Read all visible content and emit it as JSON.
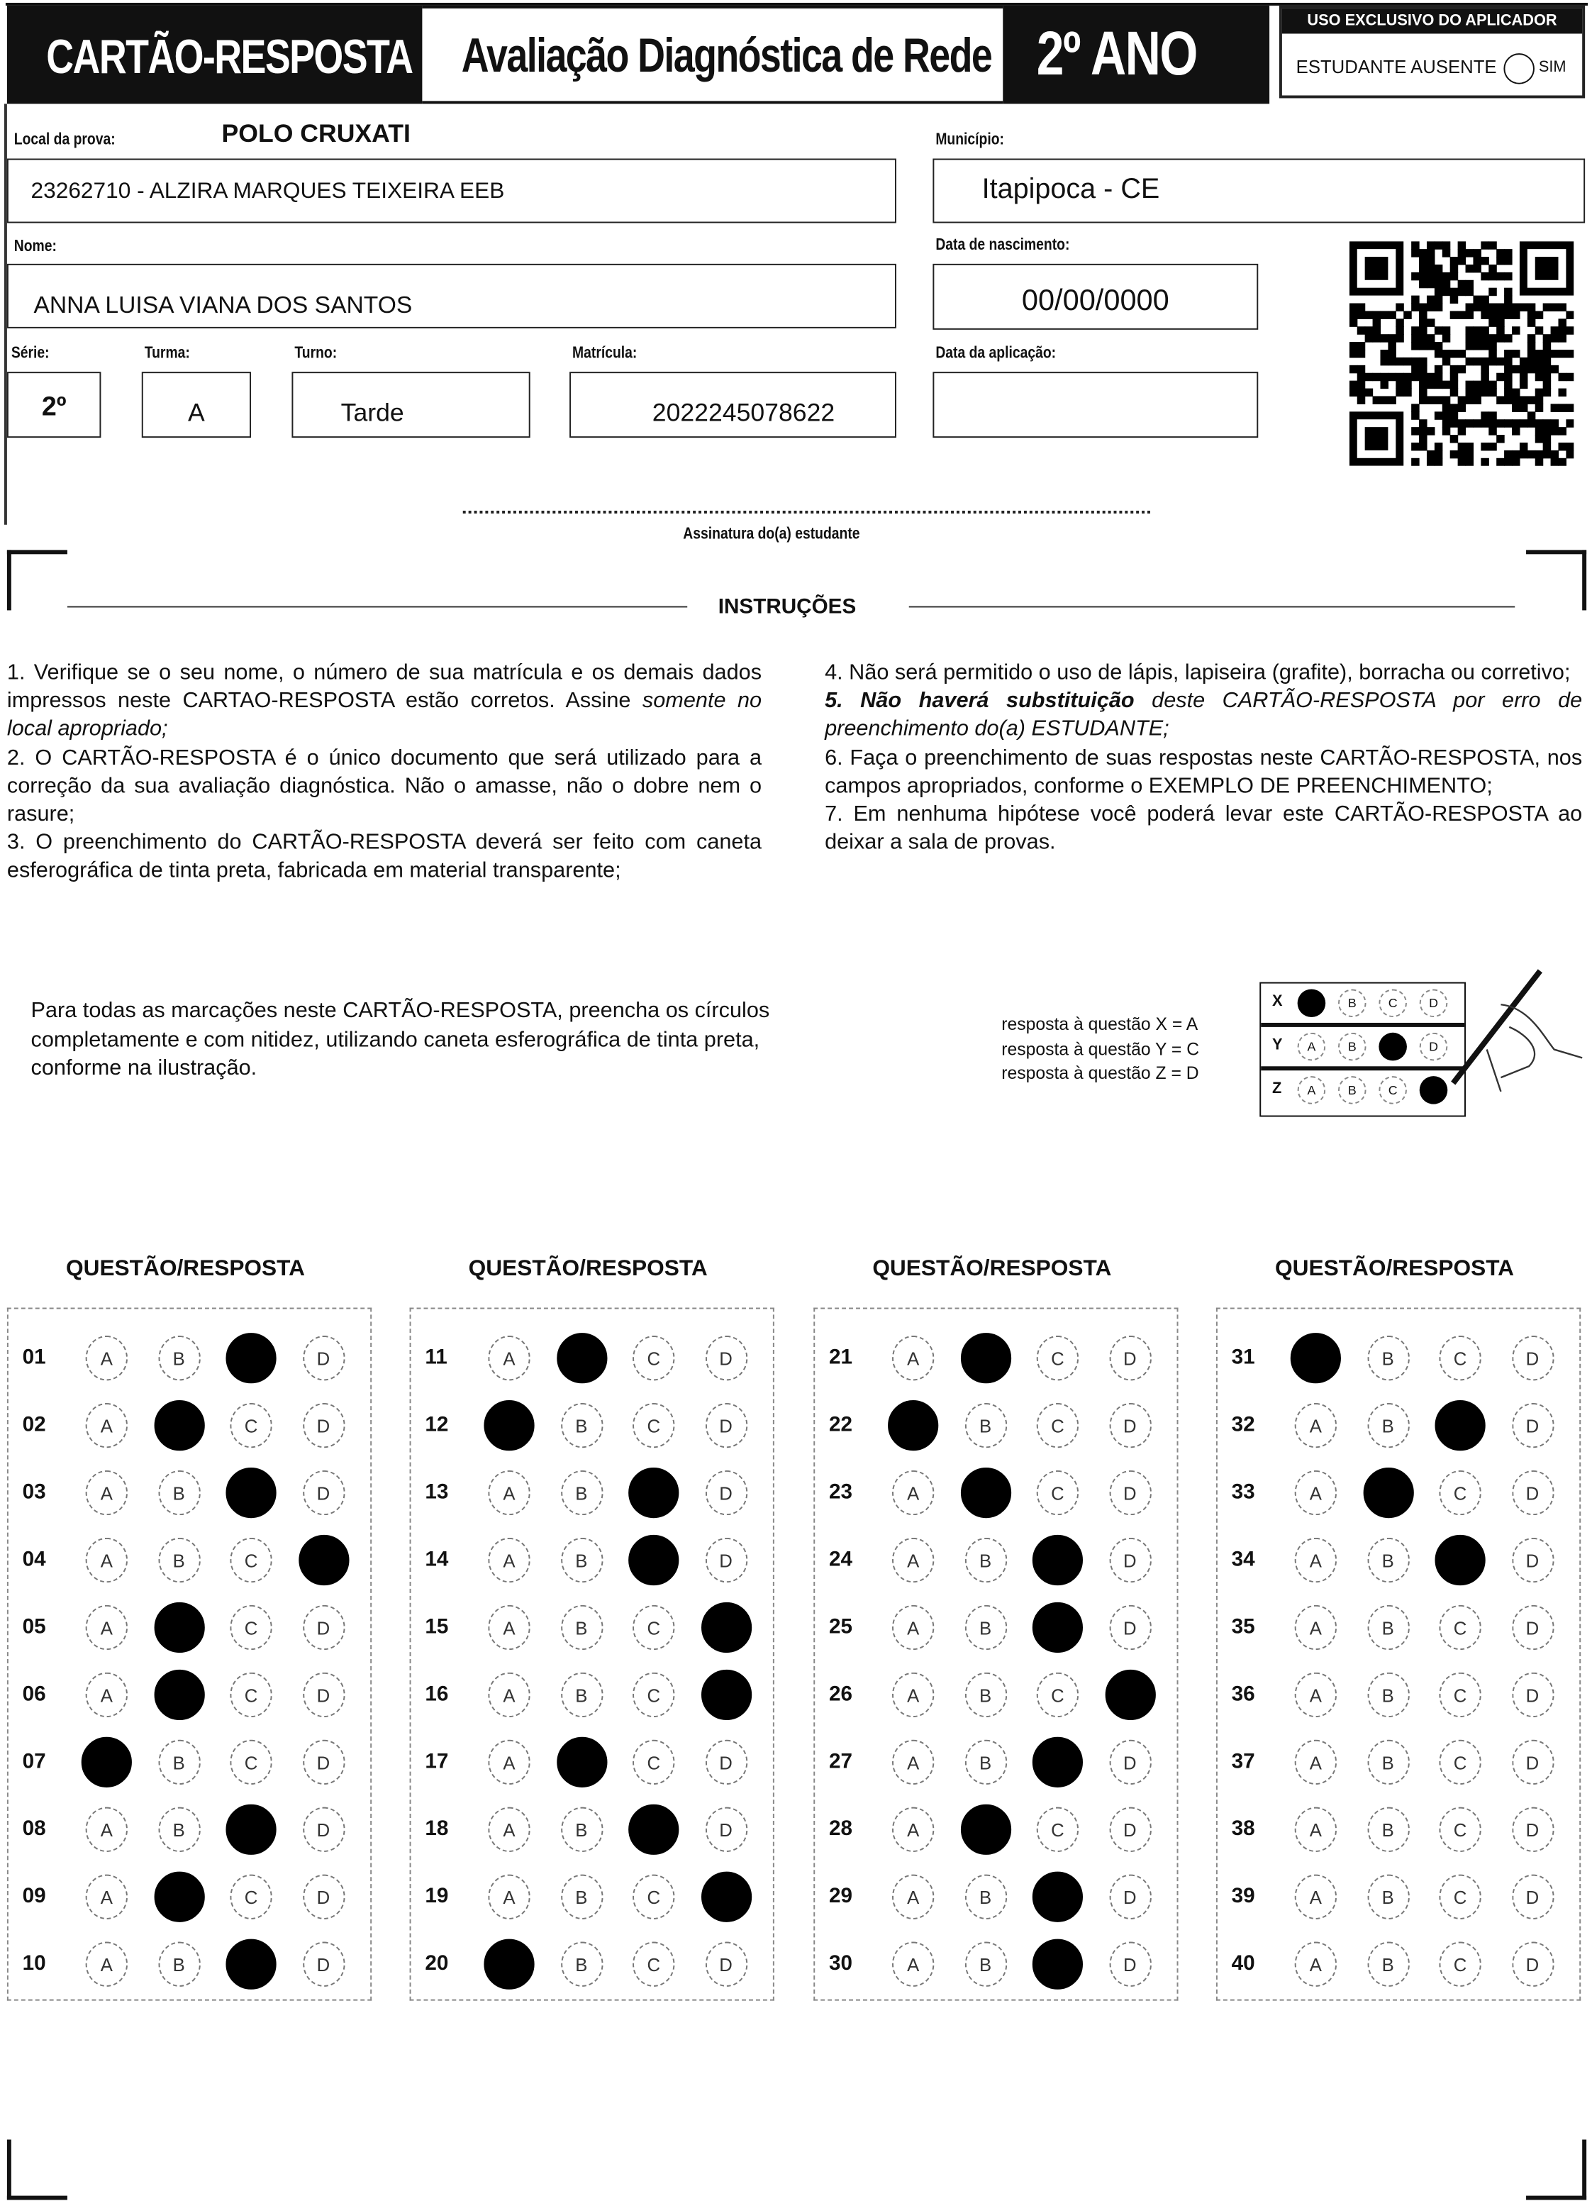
{
  "header": {
    "card_title": "CARTÃO-RESPOSTA",
    "exam_title": "Avaliação Diagnóstica de Rede",
    "grade_title": "2º ANO",
    "applicator_header": "USO EXCLUSIVO DO APLICADOR",
    "absent_label": "ESTUDANTE AUSENTE",
    "absent_option": "SIM"
  },
  "form": {
    "local_label": "Local da prova:",
    "polo": "POLO CRUXATI",
    "local_value": "23262710 - ALZIRA MARQUES TEIXEIRA EEB",
    "municipio_label": "Município:",
    "municipio_value": "Itapipoca - CE",
    "nome_label": "Nome:",
    "nome_value": "ANNA LUISA VIANA DOS SANTOS",
    "nascimento_label": "Data de nascimento:",
    "nascimento_value": "00/00/0000",
    "serie_label": "Série:",
    "serie_value": "2º",
    "turma_label": "Turma:",
    "turma_value": "A",
    "turno_label": "Turno:",
    "turno_value": "Tarde",
    "matricula_label": "Matrícula:",
    "matricula_value": "2022245078622",
    "aplicacao_label": "Data da aplicação:",
    "aplicacao_value": "",
    "signature_label": "Assinatura do(a) estudante"
  },
  "instructions": {
    "title": "INSTRUÇÕES",
    "item1": "1. Verifique se o seu nome, o número de sua matrícula e os demais dados impressos neste CARTAO-RESPOSTA estão corretos. Assine ",
    "item1_italic": "somente no local apropriado;",
    "item2": "2. O CARTÃO-RESPOSTA é o único documento que será utilizado para a correção da sua avaliação diagnóstica. Não o amasse, não o dobre nem o rasure;",
    "item3": "3. O preenchimento do CARTÃO-RESPOSTA deverá ser feito com caneta esferográfica de tinta preta, fabricada em material transparente;",
    "item4": "4. Não será permitido o uso de lápis, lapiseira (grafite), borracha ou corretivo;",
    "item5_bold": "5. Não haverá substituição",
    "item5": " deste CARTÃO-RESPOSTA por erro de preenchimento do(a) ESTUDANTE;",
    "item6": "6. Faça o preenchimento de suas respostas neste CARTÃO-RESPOSTA, nos campos apropriados, conforme o EXEMPLO DE PREENCHIMENTO;",
    "item7": "7. Em nenhuma hipótese você poderá levar este CARTÃO-RESPOSTA ao deixar a sala de provas."
  },
  "example": {
    "text": "Para todas as marcações neste CARTÃO-RESPOSTA, preencha os círculos completamente e com nitidez, utilizando caneta esferográfica de tinta preta, conforme na ilustração.",
    "legend": [
      "resposta à questão X = A",
      "resposta à questão Y = C",
      "resposta à questão Z = D"
    ],
    "rows": [
      {
        "label": "X",
        "filled": "A"
      },
      {
        "label": "Y",
        "filled": "C"
      },
      {
        "label": "Z",
        "filled": "D"
      }
    ]
  },
  "answers": {
    "column_title": "QUESTÃO/RESPOSTA",
    "options": [
      "A",
      "B",
      "C",
      "D"
    ],
    "questions": [
      {
        "n": "01",
        "mark": "C"
      },
      {
        "n": "02",
        "mark": "B"
      },
      {
        "n": "03",
        "mark": "C"
      },
      {
        "n": "04",
        "mark": "D"
      },
      {
        "n": "05",
        "mark": "B"
      },
      {
        "n": "06",
        "mark": "B"
      },
      {
        "n": "07",
        "mark": "A"
      },
      {
        "n": "08",
        "mark": "C"
      },
      {
        "n": "09",
        "mark": "B"
      },
      {
        "n": "10",
        "mark": "C"
      },
      {
        "n": "11",
        "mark": "B"
      },
      {
        "n": "12",
        "mark": "A"
      },
      {
        "n": "13",
        "mark": "C"
      },
      {
        "n": "14",
        "mark": "C"
      },
      {
        "n": "15",
        "mark": "D"
      },
      {
        "n": "16",
        "mark": "D"
      },
      {
        "n": "17",
        "mark": "B"
      },
      {
        "n": "18",
        "mark": "C"
      },
      {
        "n": "19",
        "mark": "D"
      },
      {
        "n": "20",
        "mark": "A"
      },
      {
        "n": "21",
        "mark": "B"
      },
      {
        "n": "22",
        "mark": "A"
      },
      {
        "n": "23",
        "mark": "B"
      },
      {
        "n": "24",
        "mark": "C"
      },
      {
        "n": "25",
        "mark": "C"
      },
      {
        "n": "26",
        "mark": "D"
      },
      {
        "n": "27",
        "mark": "C"
      },
      {
        "n": "28",
        "mark": "B"
      },
      {
        "n": "29",
        "mark": "C"
      },
      {
        "n": "30",
        "mark": "C"
      },
      {
        "n": "31",
        "mark": "A"
      },
      {
        "n": "32",
        "mark": "C"
      },
      {
        "n": "33",
        "mark": "B"
      },
      {
        "n": "34",
        "mark": "C"
      },
      {
        "n": "35",
        "mark": ""
      },
      {
        "n": "36",
        "mark": ""
      },
      {
        "n": "37",
        "mark": ""
      },
      {
        "n": "38",
        "mark": ""
      },
      {
        "n": "39",
        "mark": ""
      },
      {
        "n": "40",
        "mark": ""
      }
    ]
  }
}
